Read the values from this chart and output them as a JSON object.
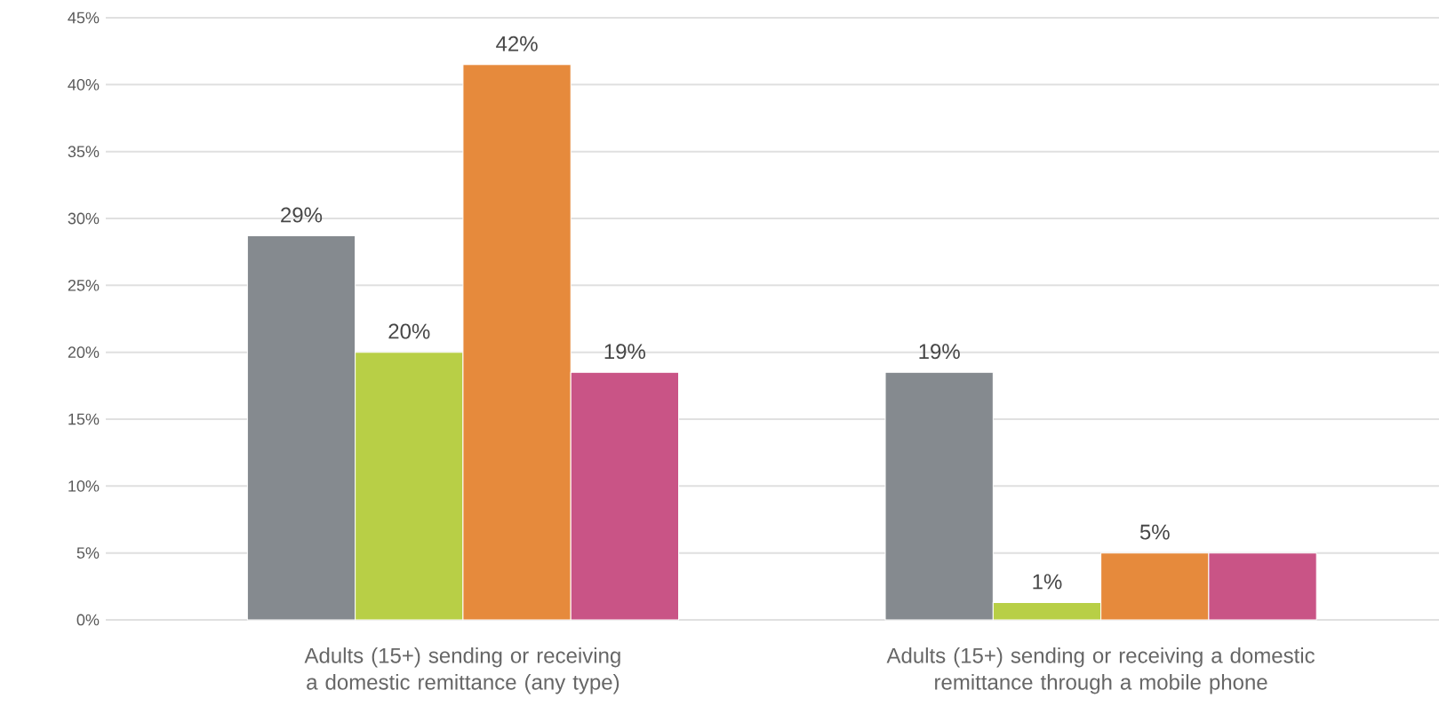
{
  "chart_data": {
    "type": "bar",
    "categories": [
      "Adults (15+) sending or receiving a domestic remittance (any type)",
      "Adults (15+) sending or receiving a domestic remittance through a mobile phone"
    ],
    "series": [
      {
        "color": "#858a8f",
        "values": [
          28.7,
          18.5
        ],
        "value_labels": [
          "29%",
          "19%"
        ]
      },
      {
        "color": "#b8cf46",
        "values": [
          20,
          1.3
        ],
        "value_labels": [
          "20%",
          "1%"
        ]
      },
      {
        "color": "#e68a3c",
        "values": [
          41.5,
          5
        ],
        "value_labels": [
          "42%",
          "5%"
        ]
      },
      {
        "color": "#c95486",
        "values": [
          18.5,
          5
        ],
        "value_labels": [
          "19%",
          null
        ]
      }
    ],
    "ylim": [
      0,
      45
    ],
    "yticks": [
      {
        "value": 0,
        "label": "0%"
      },
      {
        "value": 5,
        "label": "5%"
      },
      {
        "value": 10,
        "label": "10%"
      },
      {
        "value": 15,
        "label": "15%"
      },
      {
        "value": 20,
        "label": "20%"
      },
      {
        "value": 25,
        "label": "25%"
      },
      {
        "value": 30,
        "label": "30%"
      },
      {
        "value": 35,
        "label": "35%"
      },
      {
        "value": 40,
        "label": "40%"
      },
      {
        "value": 45,
        "label": "45%"
      }
    ],
    "grid": "y"
  }
}
